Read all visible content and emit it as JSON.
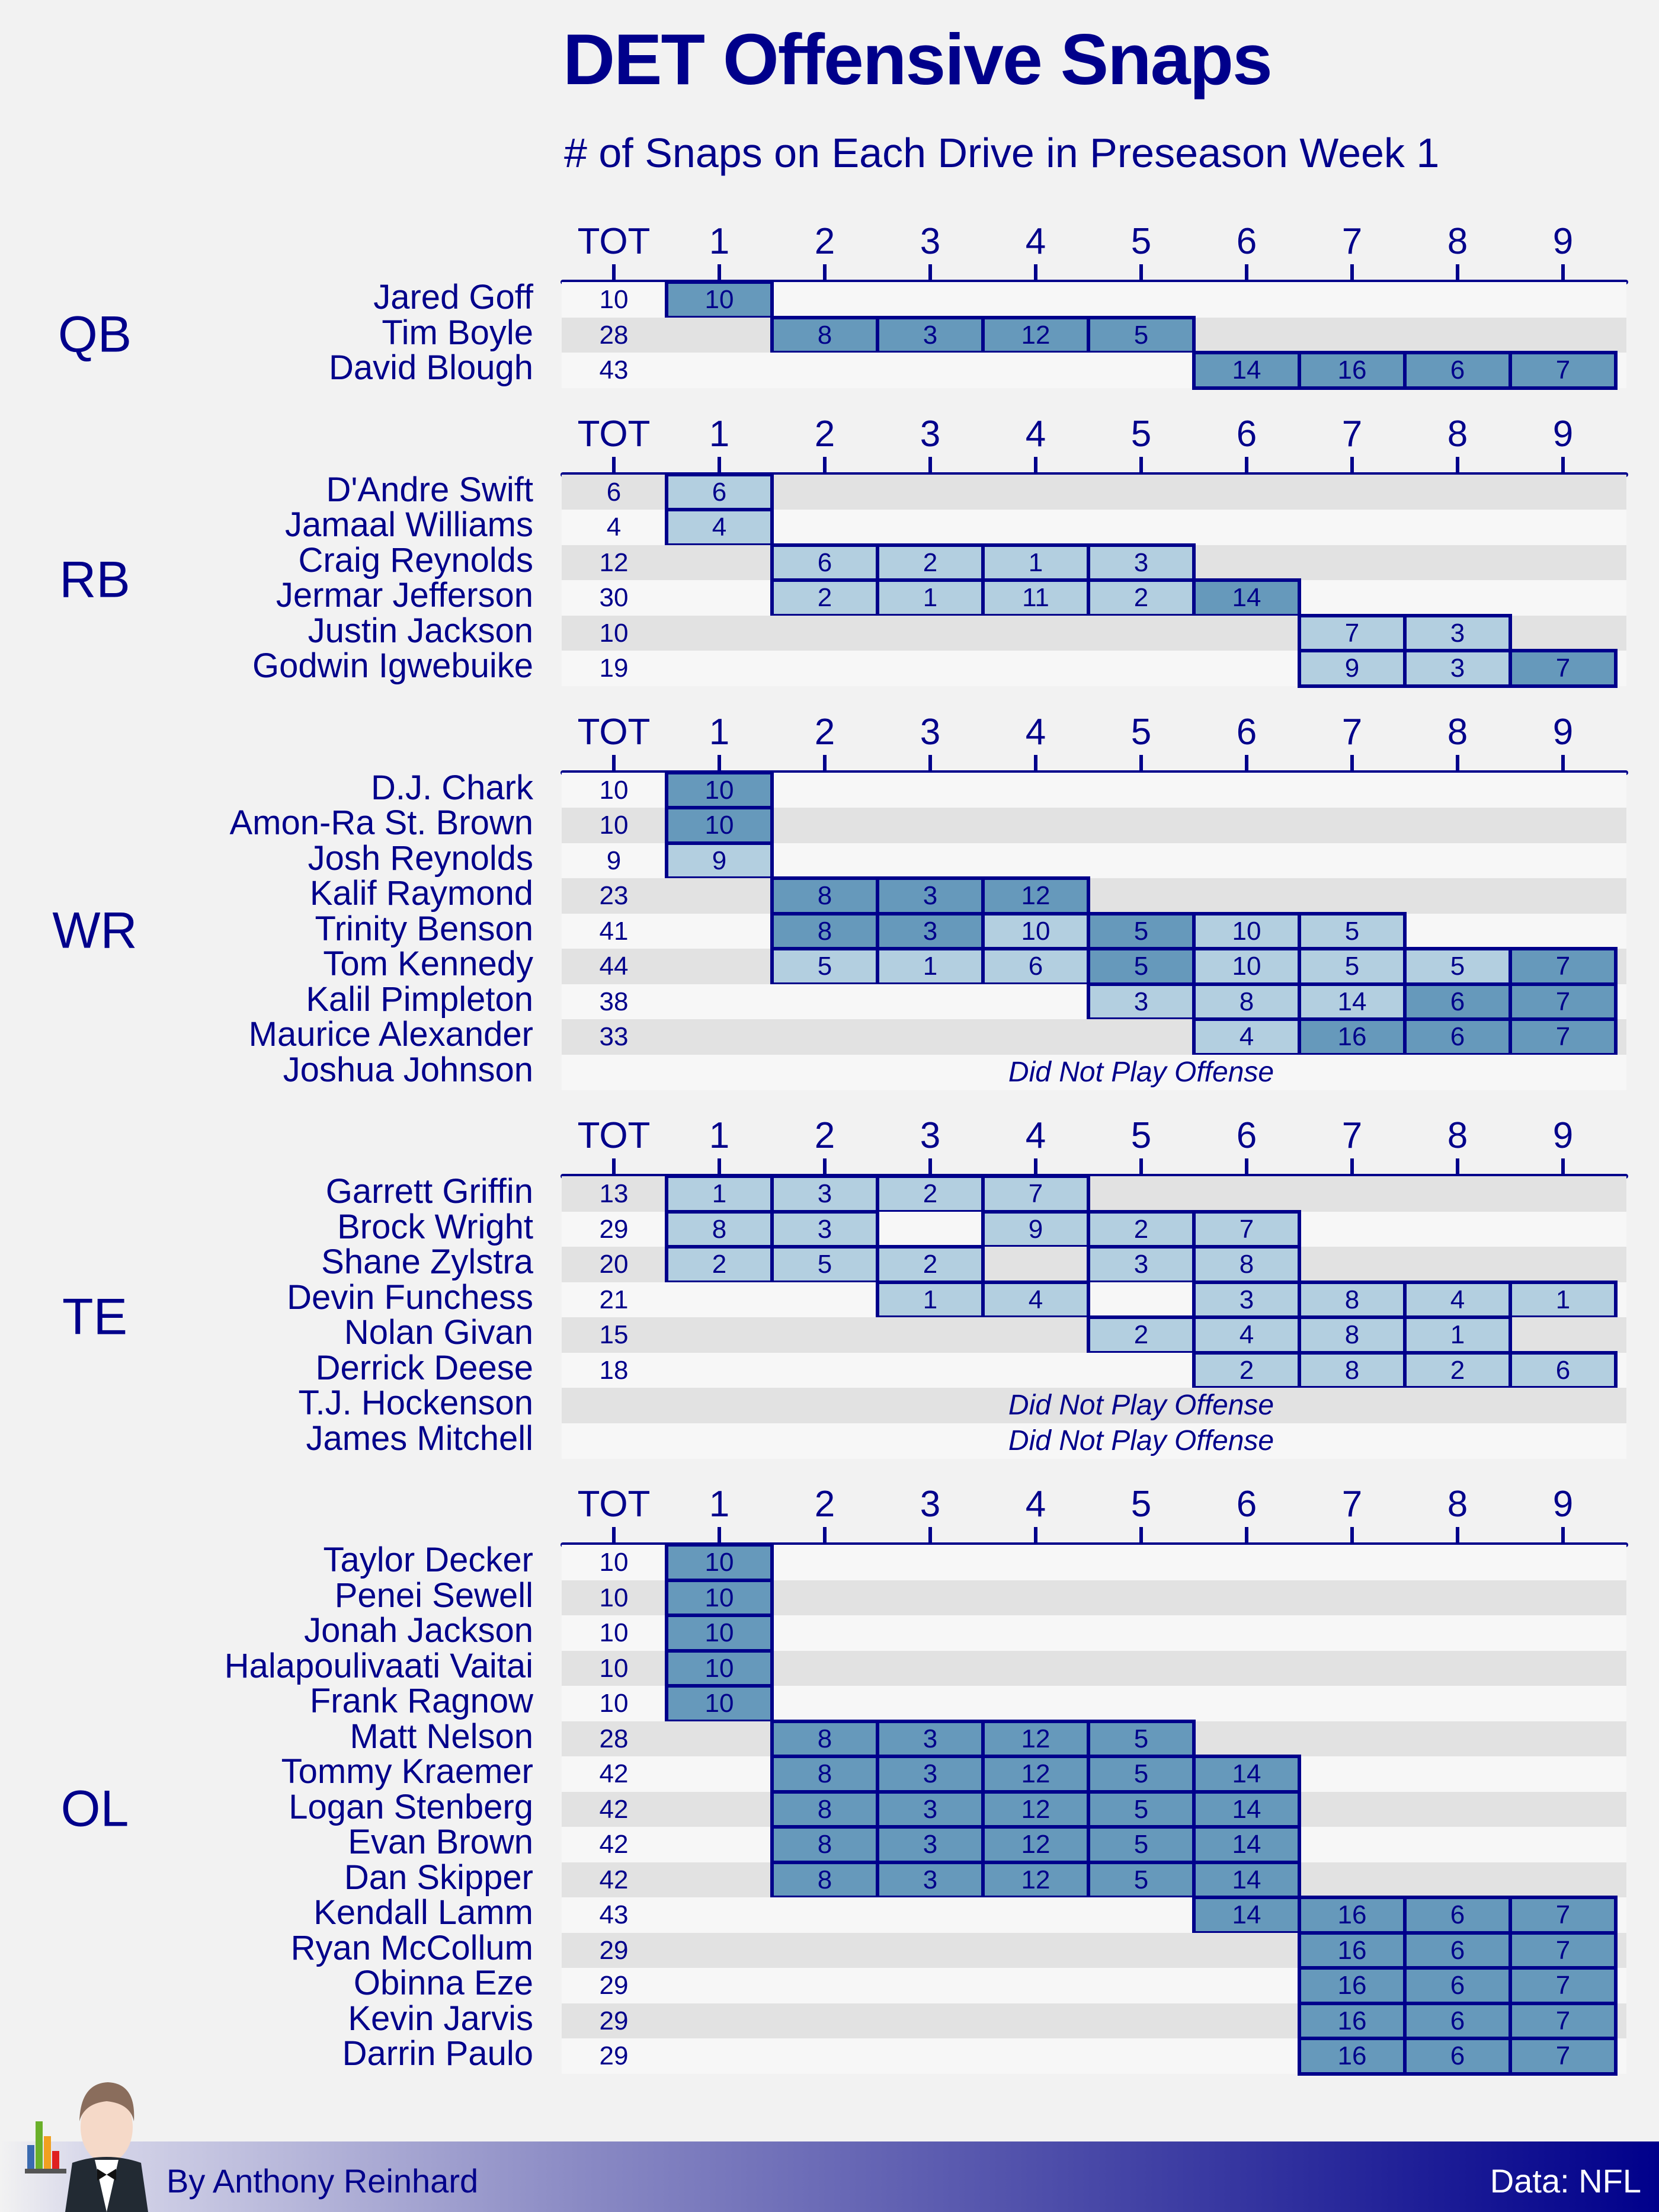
{
  "title": "DET Offensive Snaps",
  "subtitle": "# of Snaps on Each Drive in Preseason Week 1",
  "colors": {
    "text": "#00008b",
    "cell_partial": "#b3cfe0",
    "cell_full_drive": "#6699bb",
    "row_dark": "#e2e2e2",
    "row_light": "#f7f7f7",
    "background": "#f2f2f2"
  },
  "footer": {
    "byline": "By Anthony Reinhard",
    "source": "Data: NFL"
  },
  "chart_data": {
    "type": "table",
    "title": "DET Offensive Snaps",
    "subtitle": "# of Snaps on Each Drive in Preseason Week 1",
    "columns": [
      "TOT",
      "1",
      "2",
      "3",
      "4",
      "5",
      "6",
      "7",
      "8",
      "9"
    ],
    "dnp_text": "Did Not Play Offense",
    "sections": [
      {
        "position": "QB",
        "players": [
          {
            "name": "Jared Goff",
            "tot": 10,
            "drives": [
              10,
              null,
              null,
              null,
              null,
              null,
              null,
              null,
              null
            ]
          },
          {
            "name": "Tim Boyle",
            "tot": 28,
            "drives": [
              null,
              8,
              3,
              12,
              5,
              null,
              null,
              null,
              null
            ]
          },
          {
            "name": "David Blough",
            "tot": 43,
            "drives": [
              null,
              null,
              null,
              null,
              null,
              14,
              16,
              6,
              7
            ]
          }
        ]
      },
      {
        "position": "RB",
        "players": [
          {
            "name": "D'Andre Swift",
            "tot": 6,
            "drives": [
              6,
              null,
              null,
              null,
              null,
              null,
              null,
              null,
              null
            ]
          },
          {
            "name": "Jamaal Williams",
            "tot": 4,
            "drives": [
              4,
              null,
              null,
              null,
              null,
              null,
              null,
              null,
              null
            ]
          },
          {
            "name": "Craig Reynolds",
            "tot": 12,
            "drives": [
              null,
              6,
              2,
              1,
              3,
              null,
              null,
              null,
              null
            ]
          },
          {
            "name": "Jermar Jefferson",
            "tot": 30,
            "drives": [
              null,
              2,
              1,
              11,
              2,
              14,
              null,
              null,
              null
            ]
          },
          {
            "name": "Justin Jackson",
            "tot": 10,
            "drives": [
              null,
              null,
              null,
              null,
              null,
              null,
              7,
              3,
              null
            ]
          },
          {
            "name": "Godwin Igwebuike",
            "tot": 19,
            "drives": [
              null,
              null,
              null,
              null,
              null,
              null,
              9,
              3,
              7
            ]
          }
        ]
      },
      {
        "position": "WR",
        "players": [
          {
            "name": "D.J. Chark",
            "tot": 10,
            "drives": [
              10,
              null,
              null,
              null,
              null,
              null,
              null,
              null,
              null
            ]
          },
          {
            "name": "Amon-Ra St. Brown",
            "tot": 10,
            "drives": [
              10,
              null,
              null,
              null,
              null,
              null,
              null,
              null,
              null
            ]
          },
          {
            "name": "Josh Reynolds",
            "tot": 9,
            "drives": [
              9,
              null,
              null,
              null,
              null,
              null,
              null,
              null,
              null
            ]
          },
          {
            "name": "Kalif Raymond",
            "tot": 23,
            "drives": [
              null,
              8,
              3,
              12,
              null,
              null,
              null,
              null,
              null
            ]
          },
          {
            "name": "Trinity Benson",
            "tot": 41,
            "drives": [
              null,
              8,
              3,
              10,
              5,
              10,
              5,
              null,
              null
            ]
          },
          {
            "name": "Tom Kennedy",
            "tot": 44,
            "drives": [
              null,
              5,
              1,
              6,
              5,
              10,
              5,
              5,
              7
            ]
          },
          {
            "name": "Kalil Pimpleton",
            "tot": 38,
            "drives": [
              null,
              null,
              null,
              null,
              3,
              8,
              14,
              6,
              7
            ]
          },
          {
            "name": "Maurice Alexander",
            "tot": 33,
            "drives": [
              null,
              null,
              null,
              null,
              null,
              4,
              16,
              6,
              7
            ]
          },
          {
            "name": "Joshua Johnson",
            "tot": null,
            "dnp": true,
            "drives": []
          }
        ]
      },
      {
        "position": "TE",
        "players": [
          {
            "name": "Garrett Griffin",
            "tot": 13,
            "drives": [
              1,
              3,
              2,
              7,
              null,
              null,
              null,
              null,
              null
            ]
          },
          {
            "name": "Brock Wright",
            "tot": 29,
            "drives": [
              8,
              3,
              null,
              9,
              2,
              7,
              null,
              null,
              null
            ]
          },
          {
            "name": "Shane Zylstra",
            "tot": 20,
            "drives": [
              2,
              5,
              2,
              null,
              3,
              8,
              null,
              null,
              null
            ]
          },
          {
            "name": "Devin Funchess",
            "tot": 21,
            "drives": [
              null,
              null,
              1,
              4,
              null,
              3,
              8,
              4,
              1
            ]
          },
          {
            "name": "Nolan Givan",
            "tot": 15,
            "drives": [
              null,
              null,
              null,
              null,
              2,
              4,
              8,
              1,
              null
            ]
          },
          {
            "name": "Derrick Deese",
            "tot": 18,
            "drives": [
              null,
              null,
              null,
              null,
              null,
              2,
              8,
              2,
              6
            ]
          },
          {
            "name": "T.J. Hockenson",
            "tot": null,
            "dnp": true,
            "drives": []
          },
          {
            "name": "James Mitchell",
            "tot": null,
            "dnp": true,
            "drives": []
          }
        ]
      },
      {
        "position": "OL",
        "players": [
          {
            "name": "Taylor Decker",
            "tot": 10,
            "drives": [
              10,
              null,
              null,
              null,
              null,
              null,
              null,
              null,
              null
            ]
          },
          {
            "name": "Penei Sewell",
            "tot": 10,
            "drives": [
              10,
              null,
              null,
              null,
              null,
              null,
              null,
              null,
              null
            ]
          },
          {
            "name": "Jonah Jackson",
            "tot": 10,
            "drives": [
              10,
              null,
              null,
              null,
              null,
              null,
              null,
              null,
              null
            ]
          },
          {
            "name": "Halapoulivaati Vaitai",
            "tot": 10,
            "drives": [
              10,
              null,
              null,
              null,
              null,
              null,
              null,
              null,
              null
            ]
          },
          {
            "name": "Frank Ragnow",
            "tot": 10,
            "drives": [
              10,
              null,
              null,
              null,
              null,
              null,
              null,
              null,
              null
            ]
          },
          {
            "name": "Matt Nelson",
            "tot": 28,
            "drives": [
              null,
              8,
              3,
              12,
              5,
              null,
              null,
              null,
              null
            ]
          },
          {
            "name": "Tommy Kraemer",
            "tot": 42,
            "drives": [
              null,
              8,
              3,
              12,
              5,
              14,
              null,
              null,
              null
            ]
          },
          {
            "name": "Logan Stenberg",
            "tot": 42,
            "drives": [
              null,
              8,
              3,
              12,
              5,
              14,
              null,
              null,
              null
            ]
          },
          {
            "name": "Evan Brown",
            "tot": 42,
            "drives": [
              null,
              8,
              3,
              12,
              5,
              14,
              null,
              null,
              null
            ]
          },
          {
            "name": "Dan Skipper",
            "tot": 42,
            "drives": [
              null,
              8,
              3,
              12,
              5,
              14,
              null,
              null,
              null
            ]
          },
          {
            "name": "Kendall Lamm",
            "tot": 43,
            "drives": [
              null,
              null,
              null,
              null,
              null,
              14,
              16,
              6,
              7
            ]
          },
          {
            "name": "Ryan McCollum",
            "tot": 29,
            "drives": [
              null,
              null,
              null,
              null,
              null,
              null,
              16,
              6,
              7
            ]
          },
          {
            "name": "Obinna Eze",
            "tot": 29,
            "drives": [
              null,
              null,
              null,
              null,
              null,
              null,
              16,
              6,
              7
            ]
          },
          {
            "name": "Kevin Jarvis",
            "tot": 29,
            "drives": [
              null,
              null,
              null,
              null,
              null,
              null,
              16,
              6,
              7
            ]
          },
          {
            "name": "Darrin Paulo",
            "tot": 29,
            "drives": [
              null,
              null,
              null,
              null,
              null,
              null,
              16,
              6,
              7
            ]
          }
        ]
      }
    ]
  }
}
